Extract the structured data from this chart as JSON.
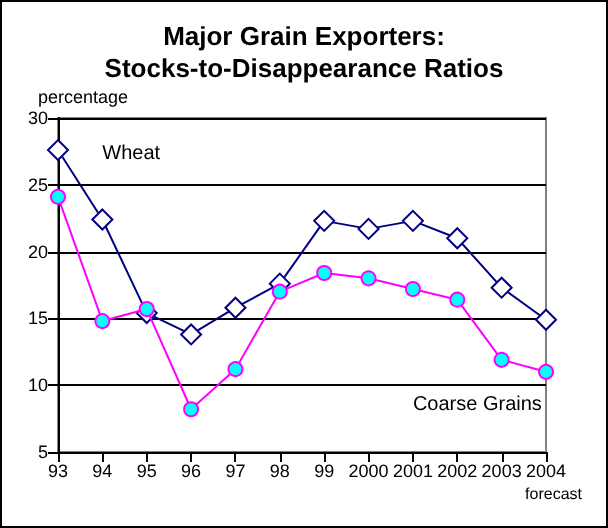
{
  "chart_data": {
    "type": "line",
    "title": "Major Grain Exporters:\nStocks-to-Disappearance Ratios",
    "ylabel": "percentage",
    "categories": [
      "93",
      "94",
      "95",
      "96",
      "97",
      "98",
      "99",
      "2000",
      "2001",
      "2002",
      "2003",
      "2004"
    ],
    "series": [
      {
        "name": "Wheat",
        "color": "#000080",
        "marker": "diamond",
        "values": [
          27.6,
          22.4,
          15.4,
          13.8,
          15.8,
          17.6,
          22.3,
          21.7,
          22.3,
          21.0,
          17.3,
          14.9
        ]
      },
      {
        "name": "Coarse Grains",
        "color": "#ff00ff",
        "marker": "circle",
        "values": [
          24.1,
          14.8,
          15.7,
          8.2,
          11.2,
          17.0,
          18.4,
          18.0,
          17.2,
          16.4,
          11.9,
          11.0
        ]
      }
    ],
    "ylim": [
      5,
      30
    ],
    "yticks": [
      5,
      10,
      15,
      20,
      25,
      30
    ],
    "grid": "y",
    "legend": false,
    "annotations": [
      "forecast"
    ]
  }
}
